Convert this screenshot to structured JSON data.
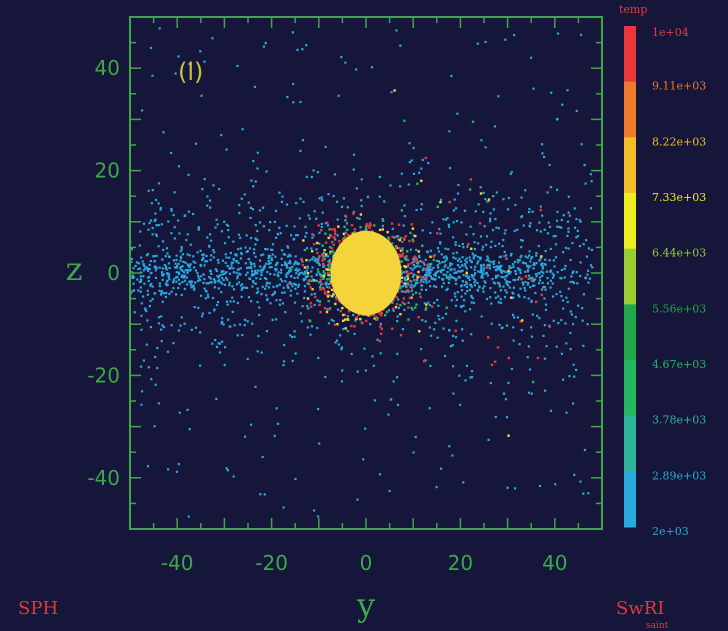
{
  "chart_data": {
    "type": "scatter",
    "title": "",
    "panel_label": "(l)",
    "xlabel": "y",
    "ylabel": "z",
    "xlim": [
      -50,
      50
    ],
    "ylim": [
      -50,
      50
    ],
    "x_ticks": [
      -40,
      -20,
      0,
      20,
      40
    ],
    "y_ticks": [
      -40,
      -20,
      0,
      20,
      40
    ],
    "grid": false,
    "colorbar": {
      "title": "temp",
      "labels": [
        "1e+04",
        "9.11e+03",
        "8.22e+03",
        "7.33e+03",
        "6.44e+03",
        "5.56e+03",
        "4.67e+03",
        "3.78e+03",
        "2.89e+03",
        "2e+03"
      ],
      "colors": [
        "#e8383a",
        "#ee7a2c",
        "#f5bc2a",
        "#eded20",
        "#9acd32",
        "#20a84a",
        "#27b562",
        "#2fb49a",
        "#2aa9de",
        "#2aa9de"
      ]
    },
    "central_body": {
      "y": 0,
      "z": 0,
      "radius": 7.5,
      "color": "#f5d33a"
    },
    "particle_colors": {
      "cold": "#2aa9de",
      "cool": "#27b562",
      "warm": "#e8383a",
      "hot": "#f5d33a"
    }
  },
  "footer": {
    "left": "SPH",
    "right": "SwRI",
    "right_small": "saint"
  },
  "colors": {
    "background": "#15163a",
    "frame": "#3fa64a",
    "corner_text": "#e4383d"
  }
}
